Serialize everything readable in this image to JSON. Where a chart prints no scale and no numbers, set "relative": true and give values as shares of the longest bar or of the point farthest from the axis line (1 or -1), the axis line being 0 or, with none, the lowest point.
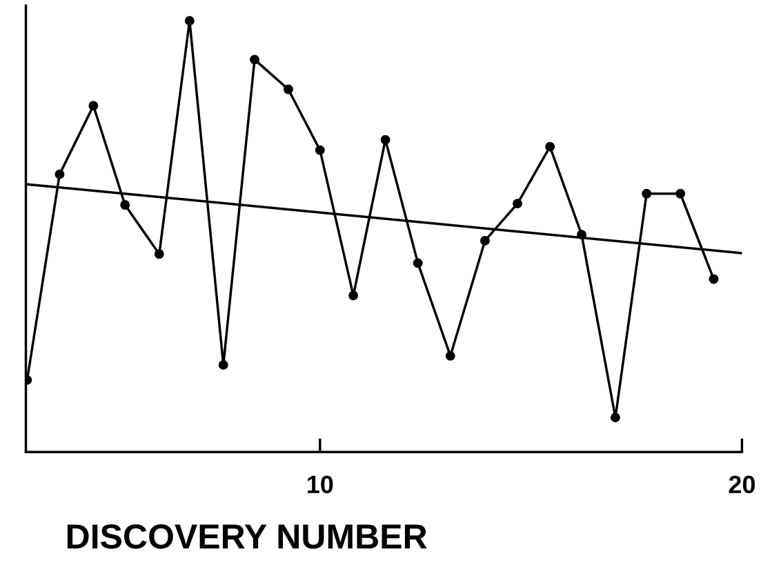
{
  "chart_data": {
    "type": "line",
    "xlabel": "DISCOVERY NUMBER",
    "relative": true,
    "grid": false,
    "legend": false,
    "xlim": [
      3.03,
      20
    ],
    "xticks": [
      10,
      20
    ],
    "series": [
      {
        "color": "#000000",
        "marker": "circle",
        "x": [
          3.06,
          3.83,
          4.63,
          5.38,
          6.19,
          6.91,
          7.71,
          8.45,
          9.25,
          10,
          10.79,
          11.55,
          12.32,
          13.09,
          13.91,
          14.68,
          15.45,
          16.2,
          17.0,
          17.74,
          18.54,
          19.33
        ],
        "values": [
          0.167,
          0.644,
          0.803,
          0.573,
          0.459,
          1,
          0.202,
          0.91,
          0.841,
          0.7,
          0.363,
          0.724,
          0.438,
          0.223,
          0.49,
          0.576,
          0.708,
          0.504,
          0.08,
          0.599,
          0.599,
          0.401
        ]
      },
      {
        "color": "#000000",
        "marker": "none",
        "x": [
          3.03,
          20
        ],
        "values": [
          0.621,
          0.461
        ]
      }
    ]
  }
}
